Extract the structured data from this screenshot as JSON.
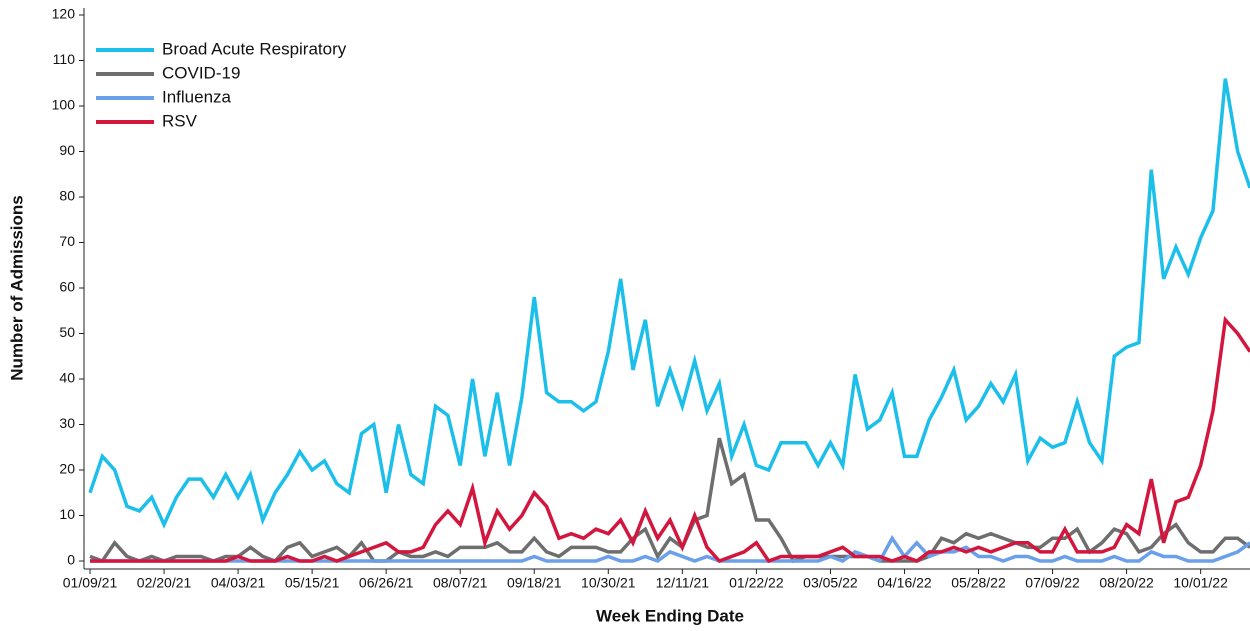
{
  "chart_data": {
    "type": "line",
    "x_label": "Week Ending Date",
    "y_label": "Number of Admissions",
    "categories": [
      "01/09/21",
      null,
      null,
      null,
      null,
      null,
      "02/20/21",
      null,
      null,
      null,
      null,
      null,
      "04/03/21",
      null,
      null,
      null,
      null,
      null,
      "05/15/21",
      null,
      null,
      null,
      null,
      null,
      "06/26/21",
      null,
      null,
      null,
      null,
      null,
      "08/07/21",
      null,
      null,
      null,
      null,
      null,
      "09/18/21",
      null,
      null,
      null,
      null,
      null,
      "10/30/21",
      null,
      null,
      null,
      null,
      null,
      "12/11/21",
      null,
      null,
      null,
      null,
      null,
      "01/22/22",
      null,
      null,
      null,
      null,
      null,
      "03/05/22",
      null,
      null,
      null,
      null,
      null,
      "04/16/22",
      null,
      null,
      null,
      null,
      null,
      "05/28/22",
      null,
      null,
      null,
      null,
      null,
      "07/09/22",
      null,
      null,
      null,
      null,
      null,
      "08/20/22",
      null,
      null,
      null,
      null,
      null,
      "10/01/22",
      null,
      null,
      null,
      null
    ],
    "series": [
      {
        "name": "Broad Acute Respiratory",
        "color": "#1bbfea",
        "values": [
          15,
          23,
          20,
          12,
          11,
          14,
          8,
          14,
          18,
          18,
          14,
          19,
          14,
          19,
          9,
          15,
          19,
          24,
          20,
          22,
          17,
          15,
          28,
          30,
          15,
          30,
          19,
          17,
          34,
          32,
          21,
          40,
          23,
          37,
          21,
          36,
          58,
          37,
          35,
          35,
          33,
          35,
          46,
          62,
          42,
          53,
          34,
          42,
          34,
          44,
          33,
          39,
          23,
          30,
          21,
          20,
          26,
          26,
          26,
          21,
          26,
          21,
          41,
          29,
          31,
          37,
          23,
          23,
          31,
          36,
          42,
          31,
          34,
          39,
          35,
          41,
          22,
          27,
          25,
          26,
          35,
          26,
          22,
          45,
          47,
          48,
          86,
          62,
          69,
          63,
          71,
          77,
          106,
          90,
          82
        ]
      },
      {
        "name": "COVID-19",
        "color": "#6e6e6e",
        "values": [
          1,
          0,
          4,
          1,
          0,
          1,
          0,
          1,
          1,
          1,
          0,
          1,
          1,
          3,
          1,
          0,
          3,
          4,
          1,
          2,
          3,
          1,
          4,
          0,
          0,
          2,
          1,
          1,
          2,
          1,
          3,
          3,
          3,
          4,
          2,
          2,
          5,
          2,
          1,
          3,
          3,
          3,
          2,
          2,
          5,
          7,
          1,
          5,
          3,
          9,
          10,
          27,
          17,
          19,
          9,
          9,
          5,
          0,
          1,
          1,
          1,
          1,
          1,
          1,
          0,
          0,
          0,
          0,
          1,
          5,
          4,
          6,
          5,
          6,
          5,
          4,
          3,
          3,
          5,
          5,
          7,
          2,
          4,
          7,
          6,
          2,
          3,
          6,
          8,
          4,
          2,
          2,
          5,
          5,
          3
        ]
      },
      {
        "name": "Influenza",
        "color": "#6aa0ea",
        "values": [
          0,
          0,
          0,
          0,
          0,
          0,
          0,
          0,
          0,
          0,
          0,
          0,
          0,
          0,
          0,
          0,
          0,
          0,
          0,
          0,
          0,
          0,
          0,
          0,
          0,
          0,
          0,
          0,
          0,
          0,
          0,
          0,
          0,
          0,
          0,
          0,
          1,
          0,
          0,
          0,
          0,
          0,
          1,
          0,
          0,
          1,
          0,
          2,
          1,
          0,
          1,
          0,
          0,
          0,
          0,
          0,
          0,
          0,
          0,
          0,
          1,
          0,
          2,
          1,
          0,
          5,
          1,
          4,
          1,
          2,
          2,
          3,
          1,
          1,
          0,
          1,
          1,
          0,
          0,
          1,
          0,
          0,
          0,
          1,
          0,
          0,
          2,
          1,
          1,
          0,
          0,
          0,
          1,
          2,
          4
        ]
      },
      {
        "name": "RSV",
        "color": "#d3163e",
        "values": [
          0,
          0,
          0,
          0,
          0,
          0,
          0,
          0,
          0,
          0,
          0,
          0,
          1,
          0,
          0,
          0,
          1,
          0,
          0,
          1,
          0,
          1,
          2,
          3,
          4,
          2,
          2,
          3,
          8,
          11,
          8,
          16,
          4,
          11,
          7,
          10,
          15,
          12,
          5,
          6,
          5,
          7,
          6,
          9,
          4,
          11,
          5,
          9,
          3,
          10,
          3,
          0,
          1,
          2,
          4,
          0,
          1,
          1,
          1,
          1,
          2,
          3,
          1,
          1,
          1,
          0,
          1,
          0,
          2,
          2,
          3,
          2,
          3,
          2,
          3,
          4,
          4,
          2,
          2,
          7,
          2,
          2,
          2,
          3,
          8,
          6,
          18,
          4,
          13,
          14,
          21,
          33,
          53,
          50,
          46
        ]
      }
    ],
    "ylim": [
      0,
      120
    ],
    "yticks": [
      0,
      10,
      20,
      30,
      40,
      50,
      60,
      70,
      80,
      90,
      100,
      110,
      120
    ],
    "legend": "upper left"
  }
}
